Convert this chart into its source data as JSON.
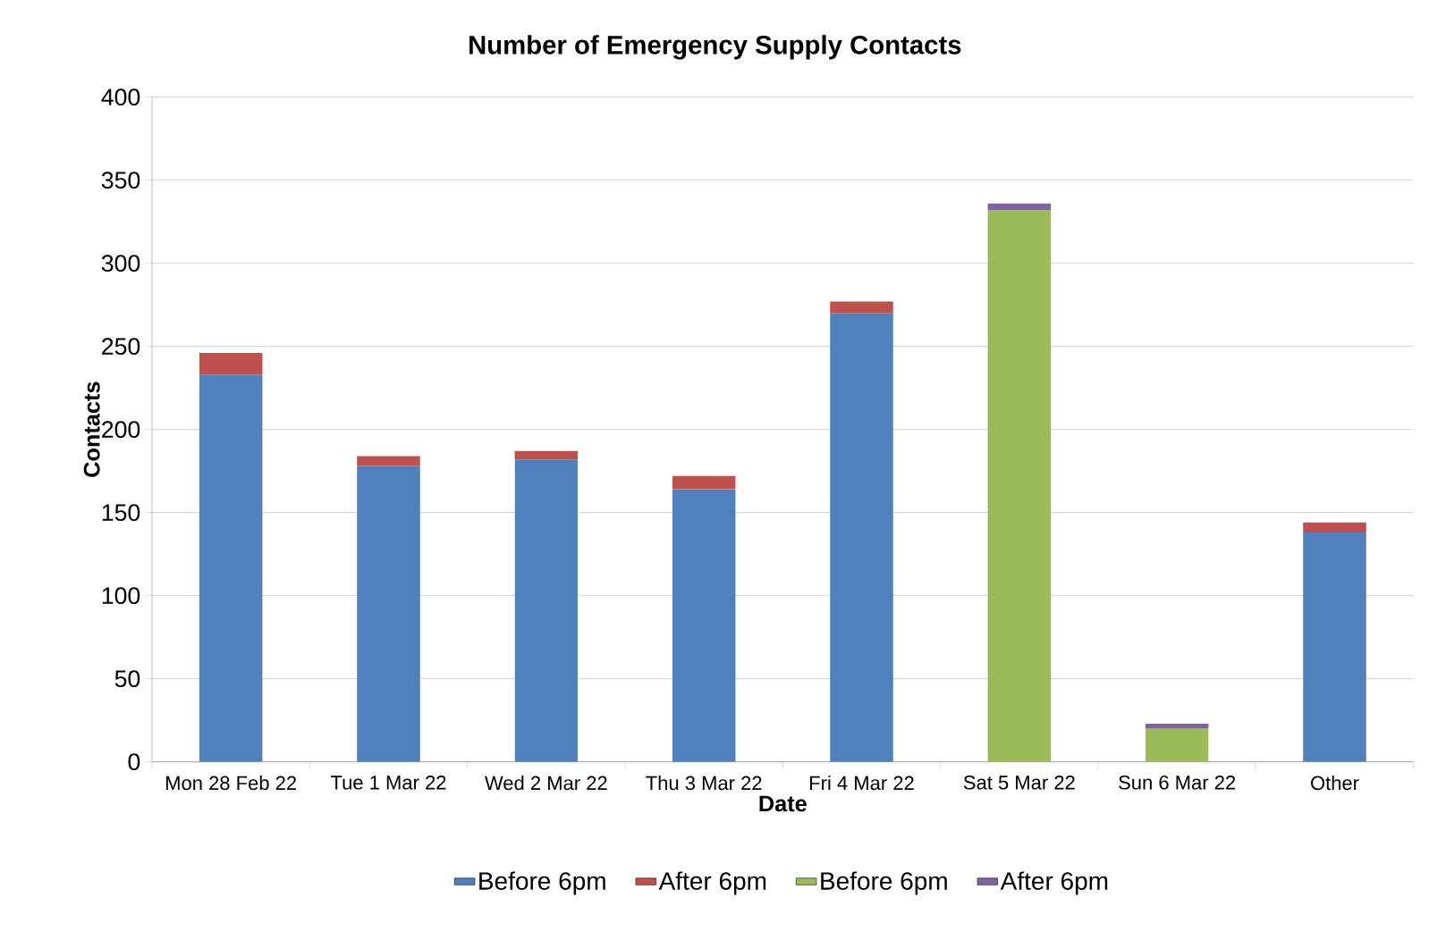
{
  "chart_data": {
    "type": "bar",
    "stacked": true,
    "title": "Number of Emergency  Supply Contacts",
    "xlabel": "Date",
    "ylabel": "Contacts",
    "categories": [
      "Mon 28 Feb 22",
      "Tue 1 Mar 22",
      "Wed 2 Mar 22",
      "Thu 3 Mar 22",
      "Fri 4 Mar 22",
      "Sat 5 Mar 22",
      "Sun 6 Mar 22",
      "Other"
    ],
    "series": [
      {
        "name": "Before 6pm",
        "color": "#4f81bd",
        "values": [
          233,
          178,
          182,
          164,
          270,
          null,
          null,
          138
        ]
      },
      {
        "name": "After 6pm",
        "color": "#c0504d",
        "values": [
          13,
          6,
          5,
          8,
          7,
          null,
          null,
          6
        ]
      },
      {
        "name": "Before 6pm",
        "color": "#9bbb59",
        "values": [
          null,
          null,
          null,
          null,
          null,
          332,
          20,
          null
        ]
      },
      {
        "name": "After 6pm",
        "color": "#8064a2",
        "values": [
          null,
          null,
          null,
          null,
          null,
          4,
          3,
          null
        ]
      }
    ],
    "ylim": [
      0,
      400
    ],
    "yticks": [
      0,
      50,
      100,
      150,
      200,
      250,
      300,
      350,
      400
    ],
    "grid": "y",
    "legend": "bottom"
  }
}
